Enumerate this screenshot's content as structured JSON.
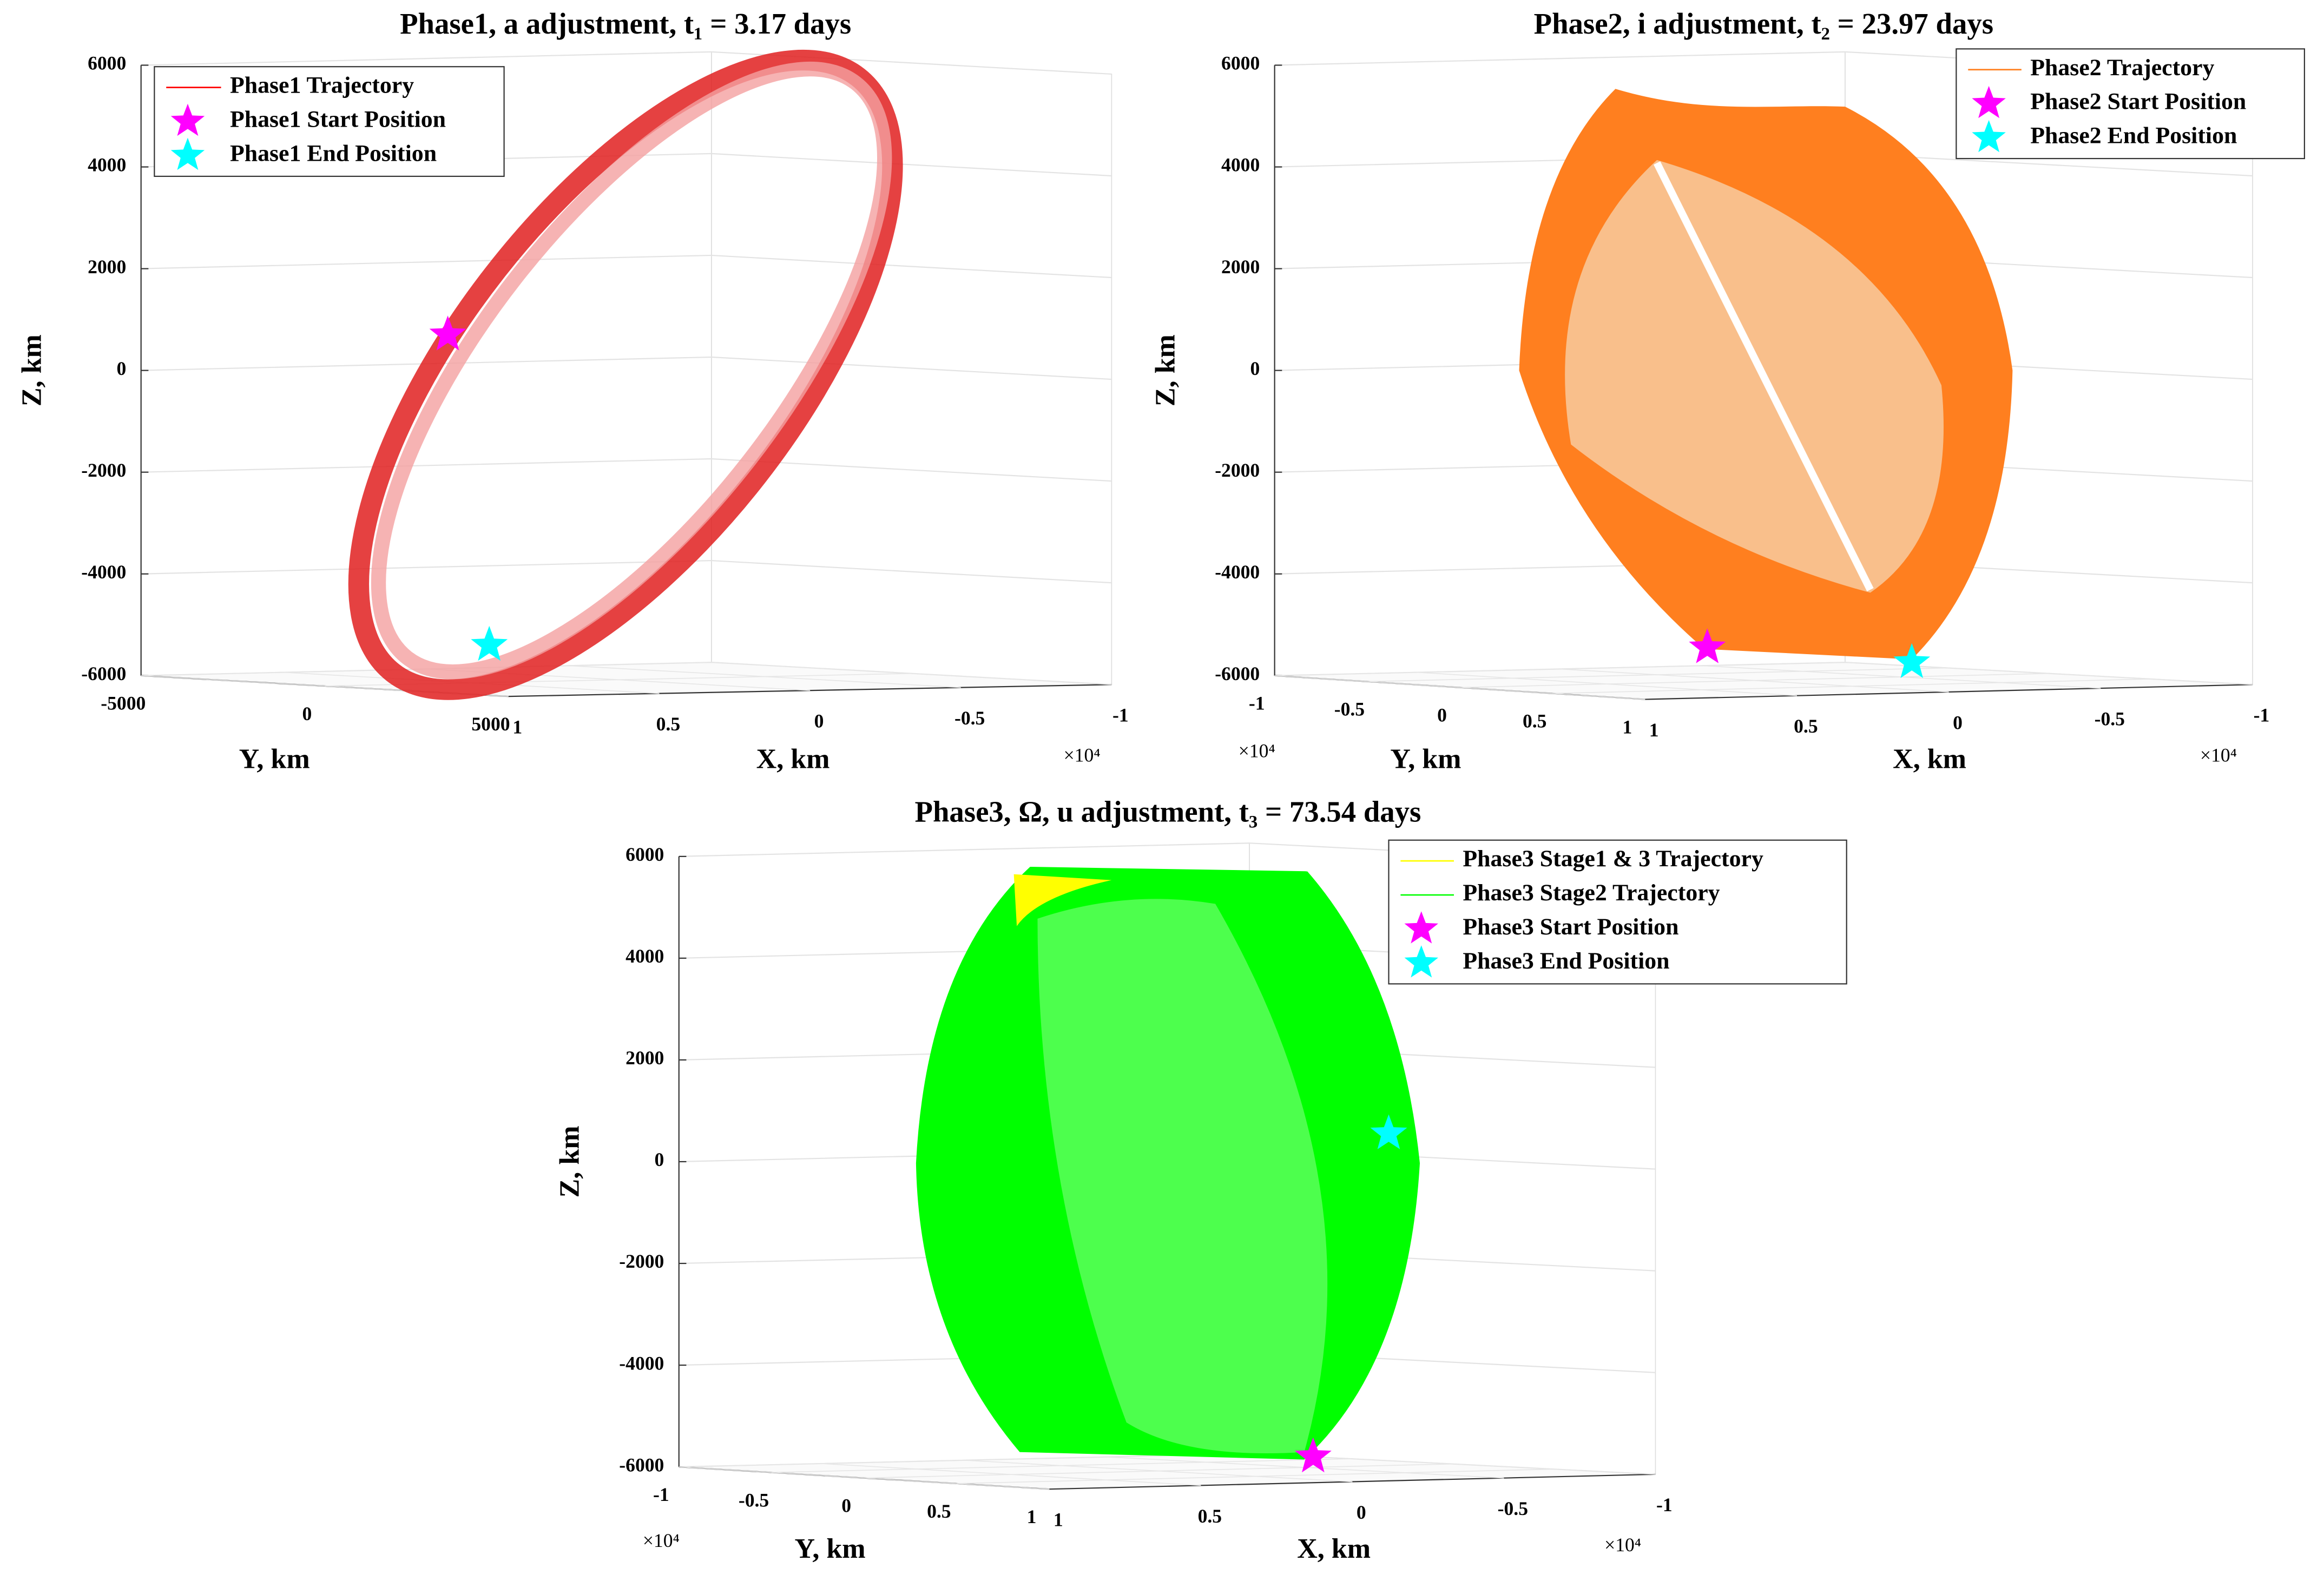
{
  "chart_data": [
    {
      "type": "line3d",
      "title": "Phase1, a adjustment, t₁ = 3.17 days",
      "xlabel": "X, km",
      "ylabel": "Y, km",
      "zlabel": "Z, km",
      "x_multiplier": "×10⁴",
      "xlim": [
        1,
        -1
      ],
      "xticks": [
        1,
        0.5,
        0,
        -0.5,
        -1
      ],
      "ylim": [
        -5000,
        5000
      ],
      "yticks": [
        -5000,
        0,
        5000
      ],
      "zlim": [
        -6000,
        6000
      ],
      "zticks": [
        -6000,
        -4000,
        -2000,
        0,
        2000,
        4000,
        6000
      ],
      "grid": true,
      "series": [
        {
          "name": "Phase1 Trajectory",
          "color": "#ff0000"
        }
      ],
      "markers": [
        {
          "name": "Phase1 Start Position",
          "color": "#ff00ff",
          "z": 700
        },
        {
          "name": "Phase1 End Position",
          "color": "#00ffff",
          "z": -5400
        }
      ]
    },
    {
      "type": "line3d",
      "title": "Phase2, i adjustment, t₂ = 23.97 days",
      "xlabel": "X, km",
      "ylabel": "Y, km",
      "zlabel": "Z, km",
      "x_multiplier": "×10⁴",
      "y_multiplier": "×10⁴",
      "xlim": [
        1,
        -1
      ],
      "xticks": [
        1,
        0.5,
        0,
        -0.5,
        -1
      ],
      "ylim": [
        -1,
        1
      ],
      "yticks": [
        -1,
        -0.5,
        0,
        0.5,
        1
      ],
      "zlim": [
        -6000,
        6000
      ],
      "zticks": [
        -6000,
        -4000,
        -2000,
        0,
        2000,
        4000,
        6000
      ],
      "grid": true,
      "series": [
        {
          "name": "Phase2 Trajectory",
          "color": "#ff7f1f"
        }
      ],
      "markers": [
        {
          "name": "Phase2 Start Position",
          "color": "#ff00ff",
          "z": -5450
        },
        {
          "name": "Phase2 End Position",
          "color": "#00ffff",
          "z": -5740
        }
      ]
    },
    {
      "type": "line3d",
      "title": "Phase3, Ω, u adjustment, t₃ = 73.54 days",
      "xlabel": "X, km",
      "ylabel": "Y, km",
      "zlabel": "Z, km",
      "x_multiplier": "×10⁴",
      "y_multiplier": "×10⁴",
      "xlim": [
        1,
        -1
      ],
      "xticks": [
        1,
        0.5,
        0,
        -0.5,
        -1
      ],
      "ylim": [
        -1,
        1
      ],
      "yticks": [
        -1,
        -0.5,
        0,
        0.5,
        1
      ],
      "zlim": [
        -6000,
        6000
      ],
      "zticks": [
        -6000,
        -4000,
        -2000,
        0,
        2000,
        4000,
        6000
      ],
      "grid": true,
      "series": [
        {
          "name": "Phase3 Stage1 & 3 Trajectory",
          "color": "#ffff00"
        },
        {
          "name": "Phase3 Stage2 Trajectory",
          "color": "#00ff00"
        }
      ],
      "markers": [
        {
          "name": "Phase3 Start Position",
          "color": "#ff00ff",
          "z": -5800
        },
        {
          "name": "Phase3 End Position",
          "color": "#00ffff",
          "z": 550
        }
      ]
    }
  ]
}
